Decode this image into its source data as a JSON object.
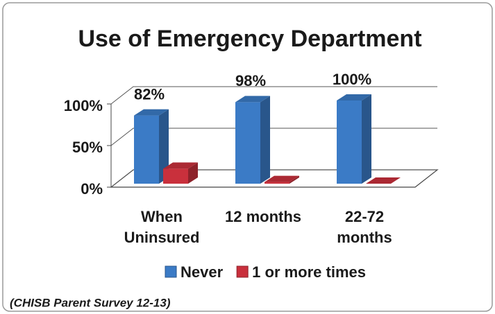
{
  "chart_data": {
    "type": "bar3d",
    "title": "Use of Emergency Department",
    "categories": [
      "When Uninsured",
      "12 months",
      "22-72 months"
    ],
    "series": [
      {
        "name": "Never",
        "color": "#3b7bc6",
        "values": [
          82,
          98,
          100
        ],
        "value_labels": [
          "82%",
          "98%",
          "100%"
        ]
      },
      {
        "name": "1 or more times",
        "color": "#c9303c",
        "values": [
          18,
          2,
          0
        ]
      }
    ],
    "ylim": [
      0,
      100
    ],
    "yticks": [
      {
        "value": 0,
        "label": "0%"
      },
      {
        "value": 50,
        "label": "50%"
      },
      {
        "value": 100,
        "label": "100%"
      }
    ],
    "grid": true,
    "legend": "bottom",
    "annotation": "(CHISB Parent Survey 12-13)"
  }
}
